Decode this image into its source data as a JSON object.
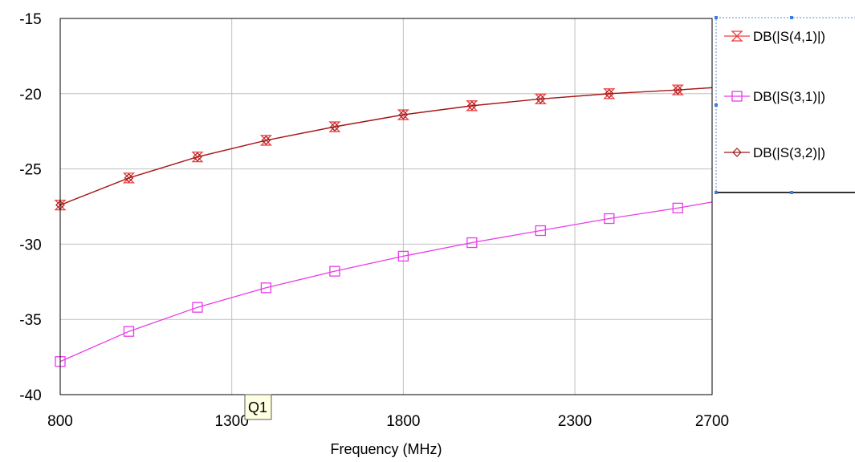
{
  "chart_data": {
    "type": "line",
    "xlabel": "Frequency (MHz)",
    "ylabel": "",
    "xlim": [
      800,
      2700
    ],
    "ylim": [
      -40,
      -15
    ],
    "x_ticks": [
      800,
      1300,
      1800,
      2300,
      2700
    ],
    "x_tick_labels": [
      "800",
      "1300",
      "1800",
      "2300",
      "2700"
    ],
    "y_ticks": [
      -15,
      -20,
      -25,
      -30,
      -35,
      -40
    ],
    "y_tick_labels": [
      "-15",
      "-20",
      "-25",
      "-30",
      "-35",
      "-40"
    ],
    "grid": true,
    "legend_position": "top-right",
    "series": [
      {
        "name": "DB(|S(4,1)|)",
        "color": "#f03c3c",
        "marker": "hourglass",
        "x": [
          800,
          1000,
          1200,
          1400,
          1600,
          1800,
          2000,
          2200,
          2400,
          2600,
          2700
        ],
        "y": [
          -27.4,
          -25.6,
          -24.2,
          -23.1,
          -22.2,
          -21.4,
          -20.8,
          -20.35,
          -20.0,
          -19.75,
          -19.6
        ]
      },
      {
        "name": "DB(|S(3,1)|)",
        "color": "#e83ce8",
        "marker": "square",
        "x": [
          800,
          1000,
          1200,
          1400,
          1600,
          1800,
          2000,
          2200,
          2400,
          2600,
          2700
        ],
        "y": [
          -37.8,
          -35.8,
          -34.2,
          -32.9,
          -31.8,
          -30.8,
          -29.9,
          -29.1,
          -28.3,
          -27.6,
          -27.2
        ]
      },
      {
        "name": "DB(|S(3,2)|)",
        "color": "#a01818",
        "marker": "diamond",
        "x": [
          800,
          1000,
          1200,
          1400,
          1600,
          1800,
          2000,
          2200,
          2400,
          2600,
          2700
        ],
        "y": [
          -27.4,
          -25.6,
          -24.2,
          -23.1,
          -22.2,
          -21.4,
          -20.8,
          -20.35,
          -20.0,
          -19.75,
          -19.6
        ]
      }
    ],
    "annotations": [
      {
        "label": "Q1",
        "x": 1300
      }
    ]
  }
}
